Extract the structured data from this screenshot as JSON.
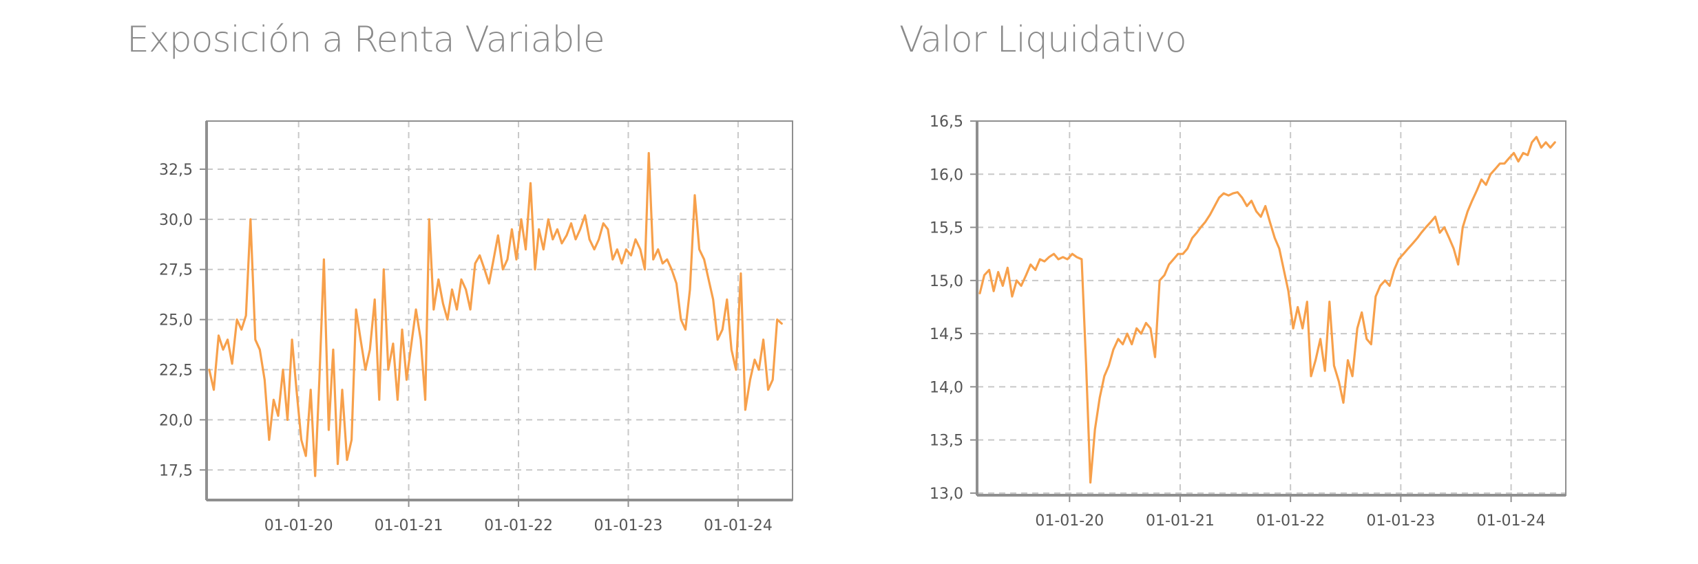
{
  "colors": {
    "series": "#f7a04b",
    "title": "#8a8a8a",
    "tick": "#555555",
    "grid": "#c8c8c8",
    "frame": "#8f8f8f"
  },
  "chart_data": [
    {
      "type": "line",
      "title": "Exposición a Renta Variable",
      "xlabel": "",
      "ylabel": "",
      "x_type": "date",
      "xlim": [
        "2019-03-01",
        "2024-06-30"
      ],
      "ylim": [
        16.0,
        34.9
      ],
      "yticks": [
        17.5,
        20.0,
        22.5,
        25.0,
        27.5,
        30.0,
        32.5
      ],
      "ytick_labels": [
        "17,5",
        "20,0",
        "22,5",
        "25,0",
        "27,5",
        "30,0",
        "32,5"
      ],
      "xticks": [
        "2020-01-01",
        "2021-01-01",
        "2022-01-01",
        "2023-01-01",
        "2024-01-01"
      ],
      "xtick_labels": [
        "01-01-20",
        "01-01-21",
        "01-01-22",
        "01-01-23",
        "01-01-24"
      ],
      "grid": true,
      "legend": "none",
      "series": [
        {
          "x": [
            "2019-03-10",
            "2019-03-25",
            "2019-04-10",
            "2019-04-25",
            "2019-05-10",
            "2019-05-25",
            "2019-06-10",
            "2019-06-25",
            "2019-07-10",
            "2019-07-25",
            "2019-08-10",
            "2019-08-25",
            "2019-09-10",
            "2019-09-25",
            "2019-10-10",
            "2019-10-25",
            "2019-11-10",
            "2019-11-25",
            "2019-12-10",
            "2019-12-25",
            "2020-01-10",
            "2020-01-25",
            "2020-02-10",
            "2020-02-25",
            "2020-03-10",
            "2020-03-25",
            "2020-04-10",
            "2020-04-25",
            "2020-05-10",
            "2020-05-25",
            "2020-06-10",
            "2020-06-25",
            "2020-07-10",
            "2020-07-25",
            "2020-08-10",
            "2020-08-25",
            "2020-09-10",
            "2020-09-25",
            "2020-10-10",
            "2020-10-25",
            "2020-11-10",
            "2020-11-25",
            "2020-12-10",
            "2020-12-25",
            "2021-01-10",
            "2021-01-25",
            "2021-02-10",
            "2021-02-25",
            "2021-03-10",
            "2021-03-25",
            "2021-04-10",
            "2021-04-25",
            "2021-05-10",
            "2021-05-25",
            "2021-06-10",
            "2021-06-25",
            "2021-07-10",
            "2021-07-25",
            "2021-08-10",
            "2021-08-25",
            "2021-09-10",
            "2021-09-25",
            "2021-10-10",
            "2021-10-25",
            "2021-11-10",
            "2021-11-25",
            "2021-12-10",
            "2021-12-25",
            "2022-01-10",
            "2022-01-25",
            "2022-02-10",
            "2022-02-25",
            "2022-03-10",
            "2022-03-25",
            "2022-04-10",
            "2022-04-25",
            "2022-05-10",
            "2022-05-25",
            "2022-06-10",
            "2022-06-25",
            "2022-07-10",
            "2022-07-25",
            "2022-08-10",
            "2022-08-25",
            "2022-09-10",
            "2022-09-25",
            "2022-10-10",
            "2022-10-25",
            "2022-11-10",
            "2022-11-25",
            "2022-12-10",
            "2022-12-25",
            "2023-01-10",
            "2023-01-25",
            "2023-02-10",
            "2023-02-25",
            "2023-03-10",
            "2023-03-25",
            "2023-04-10",
            "2023-04-25",
            "2023-05-10",
            "2023-05-25",
            "2023-06-10",
            "2023-06-25",
            "2023-07-10",
            "2023-07-25",
            "2023-08-10",
            "2023-08-25",
            "2023-09-10",
            "2023-09-25",
            "2023-10-10",
            "2023-10-25",
            "2023-11-10",
            "2023-11-25",
            "2023-12-10",
            "2023-12-25",
            "2024-01-10",
            "2024-01-25",
            "2024-02-10",
            "2024-02-25",
            "2024-03-10",
            "2024-03-25",
            "2024-04-10",
            "2024-04-25",
            "2024-05-10",
            "2024-05-25"
          ],
          "y": [
            22.5,
            21.5,
            24.2,
            23.5,
            24.0,
            22.8,
            25.0,
            24.5,
            25.2,
            30.0,
            24.0,
            23.5,
            22.0,
            19.0,
            21.0,
            20.2,
            22.5,
            20.0,
            24.0,
            21.5,
            19.0,
            18.2,
            21.5,
            17.2,
            22.0,
            28.0,
            19.5,
            23.5,
            17.8,
            21.5,
            18.0,
            19.0,
            25.5,
            24.0,
            22.5,
            23.5,
            26.0,
            21.0,
            27.5,
            22.5,
            23.8,
            21.0,
            24.5,
            22.0,
            23.8,
            25.5,
            24.0,
            21.0,
            30.0,
            25.5,
            27.0,
            25.8,
            25.0,
            26.5,
            25.5,
            27.0,
            26.5,
            25.5,
            27.8,
            28.2,
            27.5,
            26.8,
            28.0,
            29.2,
            27.5,
            28.0,
            29.5,
            28.0,
            30.0,
            28.5,
            31.8,
            27.5,
            29.5,
            28.5,
            30.0,
            29.0,
            29.5,
            28.8,
            29.2,
            29.8,
            29.0,
            29.5,
            30.2,
            29.0,
            28.5,
            29.0,
            29.8,
            29.5,
            28.0,
            28.5,
            27.8,
            28.5,
            28.2,
            29.0,
            28.5,
            27.5,
            33.3,
            28.0,
            28.5,
            27.8,
            28.0,
            27.5,
            26.8,
            25.0,
            24.5,
            26.5,
            31.2,
            28.5,
            28.0,
            27.0,
            26.0,
            24.0,
            24.5,
            26.0,
            23.5,
            22.5,
            27.3,
            20.5,
            22.0,
            23.0,
            22.5,
            24.0,
            21.5,
            22.0,
            25.0,
            24.8
          ]
        }
      ]
    },
    {
      "type": "line",
      "title": "Valor Liquidativo",
      "xlabel": "",
      "ylabel": "",
      "x_type": "date",
      "xlim": [
        "2019-03-01",
        "2024-06-30"
      ],
      "ylim": [
        12.98,
        16.5
      ],
      "yticks": [
        13.0,
        13.5,
        14.0,
        14.5,
        15.0,
        15.5,
        16.0,
        16.5
      ],
      "ytick_labels": [
        "13,0",
        "13,5",
        "14,0",
        "14,5",
        "15,0",
        "15,5",
        "16,0",
        "16,5"
      ],
      "xticks": [
        "2020-01-01",
        "2021-01-01",
        "2022-01-01",
        "2023-01-01",
        "2024-01-01"
      ],
      "xtick_labels": [
        "01-01-20",
        "01-01-21",
        "01-01-22",
        "01-01-23",
        "01-01-24"
      ],
      "grid": true,
      "legend": "none",
      "series": [
        {
          "x": [
            "2019-03-10",
            "2019-03-25",
            "2019-04-10",
            "2019-04-25",
            "2019-05-10",
            "2019-05-25",
            "2019-06-10",
            "2019-06-25",
            "2019-07-10",
            "2019-07-25",
            "2019-08-10",
            "2019-08-25",
            "2019-09-10",
            "2019-09-25",
            "2019-10-10",
            "2019-10-25",
            "2019-11-10",
            "2019-11-25",
            "2019-12-10",
            "2019-12-25",
            "2020-01-10",
            "2020-01-25",
            "2020-02-10",
            "2020-02-25",
            "2020-03-10",
            "2020-03-25",
            "2020-04-10",
            "2020-04-25",
            "2020-05-10",
            "2020-05-25",
            "2020-06-10",
            "2020-06-25",
            "2020-07-10",
            "2020-07-25",
            "2020-08-10",
            "2020-08-25",
            "2020-09-10",
            "2020-09-25",
            "2020-10-10",
            "2020-10-25",
            "2020-11-10",
            "2020-11-25",
            "2020-12-10",
            "2020-12-25",
            "2021-01-10",
            "2021-01-25",
            "2021-02-10",
            "2021-02-25",
            "2021-03-10",
            "2021-03-25",
            "2021-04-10",
            "2021-04-25",
            "2021-05-10",
            "2021-05-25",
            "2021-06-10",
            "2021-06-25",
            "2021-07-10",
            "2021-07-25",
            "2021-08-10",
            "2021-08-25",
            "2021-09-10",
            "2021-09-25",
            "2021-10-10",
            "2021-10-25",
            "2021-11-10",
            "2021-11-25",
            "2021-12-10",
            "2021-12-25",
            "2022-01-10",
            "2022-01-25",
            "2022-02-10",
            "2022-02-25",
            "2022-03-10",
            "2022-03-25",
            "2022-04-10",
            "2022-04-25",
            "2022-05-10",
            "2022-05-25",
            "2022-06-10",
            "2022-06-25",
            "2022-07-10",
            "2022-07-25",
            "2022-08-10",
            "2022-08-25",
            "2022-09-10",
            "2022-09-25",
            "2022-10-10",
            "2022-10-25",
            "2022-11-10",
            "2022-11-25",
            "2022-12-10",
            "2022-12-25",
            "2023-01-10",
            "2023-01-25",
            "2023-02-10",
            "2023-02-25",
            "2023-03-10",
            "2023-03-25",
            "2023-04-10",
            "2023-04-25",
            "2023-05-10",
            "2023-05-25",
            "2023-06-10",
            "2023-06-25",
            "2023-07-10",
            "2023-07-25",
            "2023-08-10",
            "2023-08-25",
            "2023-09-10",
            "2023-09-25",
            "2023-10-10",
            "2023-10-25",
            "2023-11-10",
            "2023-11-25",
            "2023-12-10",
            "2023-12-25",
            "2024-01-10",
            "2024-01-25",
            "2024-02-10",
            "2024-02-25",
            "2024-03-10",
            "2024-03-25",
            "2024-04-10",
            "2024-04-25",
            "2024-05-10",
            "2024-05-25"
          ],
          "y": [
            14.88,
            15.05,
            15.1,
            14.9,
            15.08,
            14.95,
            15.12,
            14.85,
            15.0,
            14.95,
            15.05,
            15.15,
            15.1,
            15.2,
            15.18,
            15.22,
            15.25,
            15.2,
            15.22,
            15.2,
            15.25,
            15.22,
            15.2,
            14.2,
            13.1,
            13.6,
            13.9,
            14.1,
            14.2,
            14.35,
            14.45,
            14.4,
            14.5,
            14.4,
            14.55,
            14.5,
            14.6,
            14.55,
            14.28,
            15.0,
            15.05,
            15.15,
            15.2,
            15.25,
            15.25,
            15.3,
            15.4,
            15.45,
            15.5,
            15.55,
            15.62,
            15.7,
            15.78,
            15.82,
            15.8,
            15.82,
            15.83,
            15.78,
            15.7,
            15.75,
            15.65,
            15.6,
            15.7,
            15.55,
            15.4,
            15.3,
            15.1,
            14.9,
            14.55,
            14.75,
            14.55,
            14.8,
            14.1,
            14.25,
            14.45,
            14.15,
            14.8,
            14.2,
            14.05,
            13.85,
            14.25,
            14.1,
            14.55,
            14.7,
            14.45,
            14.4,
            14.85,
            14.95,
            15.0,
            14.95,
            15.1,
            15.2,
            15.25,
            15.3,
            15.35,
            15.4,
            15.45,
            15.5,
            15.55,
            15.6,
            15.45,
            15.5,
            15.4,
            15.3,
            15.15,
            15.5,
            15.65,
            15.75,
            15.85,
            15.95,
            15.9,
            16.0,
            16.05,
            16.1,
            16.1,
            16.15,
            16.2,
            16.12,
            16.2,
            16.18,
            16.3,
            16.35,
            16.25,
            16.3,
            16.25,
            16.3
          ]
        }
      ]
    }
  ]
}
